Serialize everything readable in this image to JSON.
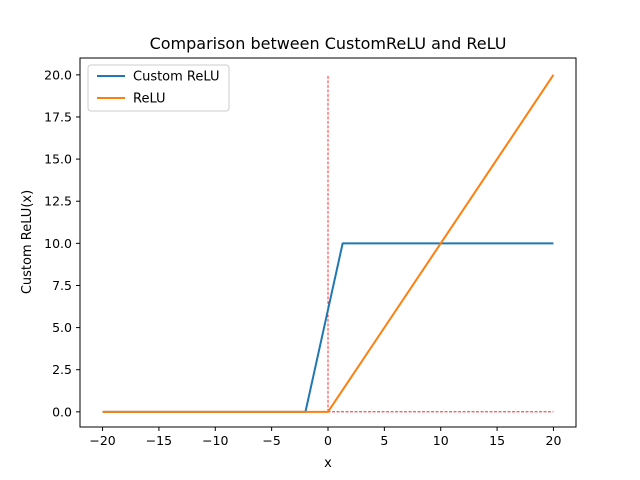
{
  "chart_data": {
    "type": "line",
    "title": "Comparison between CustomReLU and ReLU",
    "xlabel": "x",
    "ylabel": "Custom ReLU(x)",
    "xlim": [
      -22,
      22
    ],
    "ylim": [
      -0.9,
      21.0
    ],
    "xticks": [
      -20,
      -15,
      -10,
      -5,
      0,
      5,
      10,
      15,
      20
    ],
    "xtick_labels": [
      "−20",
      "−15",
      "−10",
      "−5",
      "0",
      "5",
      "10",
      "15",
      "20"
    ],
    "yticks": [
      0,
      2.5,
      5,
      7.5,
      10,
      12.5,
      15,
      17.5,
      20
    ],
    "ytick_labels": [
      "0.0",
      "2.5",
      "5.0",
      "7.5",
      "10.0",
      "12.5",
      "15.0",
      "17.5",
      "20.0"
    ],
    "grid": false,
    "legend_position": "top-left",
    "series": [
      {
        "name": "Custom ReLU",
        "color": "#1f77b4",
        "x": [
          -20,
          -2,
          1.3,
          20
        ],
        "y": [
          0,
          0,
          10,
          10
        ]
      },
      {
        "name": "ReLU",
        "color": "#ff7f0e",
        "x": [
          -20,
          0,
          20
        ],
        "y": [
          0,
          0,
          20
        ]
      }
    ],
    "reference_lines": [
      {
        "orientation": "vertical",
        "x": 0,
        "y_from": 0,
        "y_to": 20,
        "color": "#ff0000",
        "style": "dashed"
      },
      {
        "orientation": "horizontal",
        "y": 0,
        "x_from": -20,
        "x_to": 20,
        "color": "#ff0000",
        "style": "dashed"
      }
    ]
  }
}
